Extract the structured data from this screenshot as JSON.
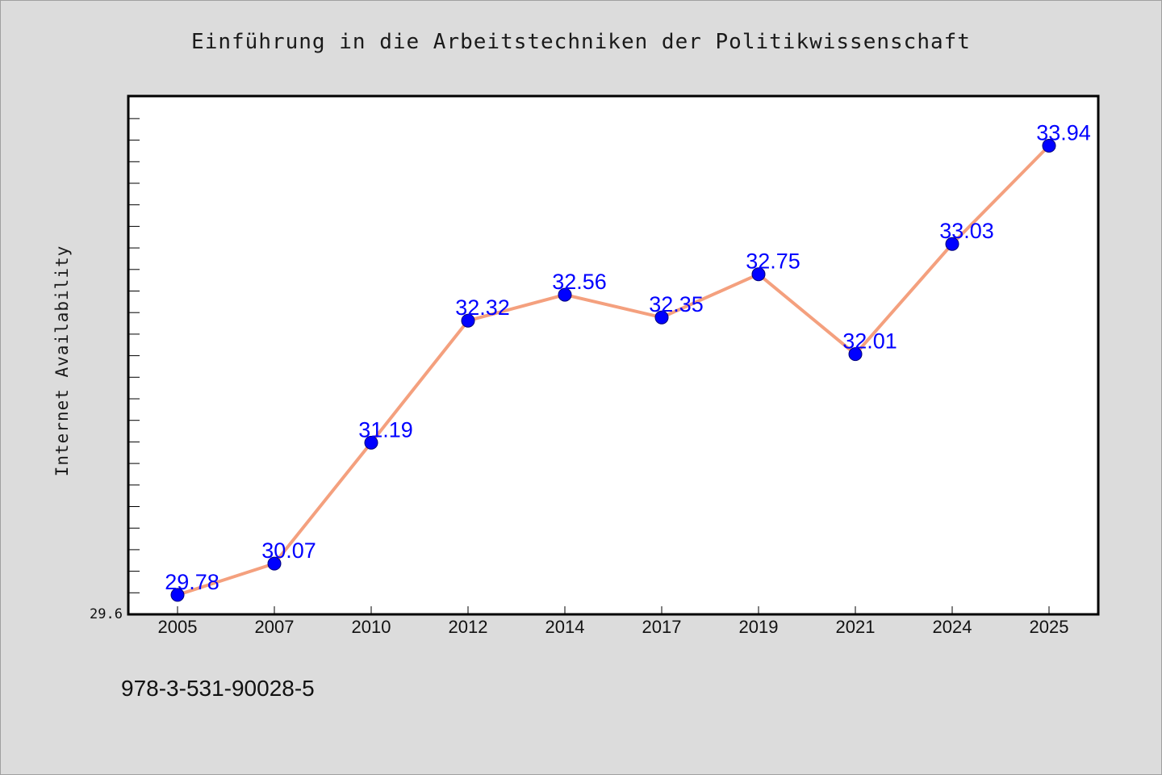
{
  "chart_data": {
    "type": "line",
    "title": "Einführung in die Arbeitstechniken der Politikwissenschaft",
    "xlabel": "",
    "ylabel": "Internet Availability",
    "categories": [
      "2005",
      "2007",
      "2010",
      "2012",
      "2014",
      "2017",
      "2019",
      "2021",
      "2024",
      "2025"
    ],
    "series": [
      {
        "values": [
          29.78,
          30.07,
          31.19,
          32.32,
          32.56,
          32.35,
          32.75,
          32.01,
          33.03,
          33.94
        ]
      }
    ],
    "data_labels": [
      "29.78",
      "30.07",
      "31.19",
      "32.32",
      "32.56",
      "32.35",
      "32.75",
      "32.01",
      "33.03",
      "33.94"
    ],
    "y_tick_label": "29.6",
    "ylim": [
      29.6,
      34.4
    ],
    "grid": false,
    "line_color": "#f4a07e",
    "marker_color": "#0000ff",
    "label_color": "#0000ff"
  },
  "footer": {
    "isbn": "978-3-531-90028-5"
  }
}
